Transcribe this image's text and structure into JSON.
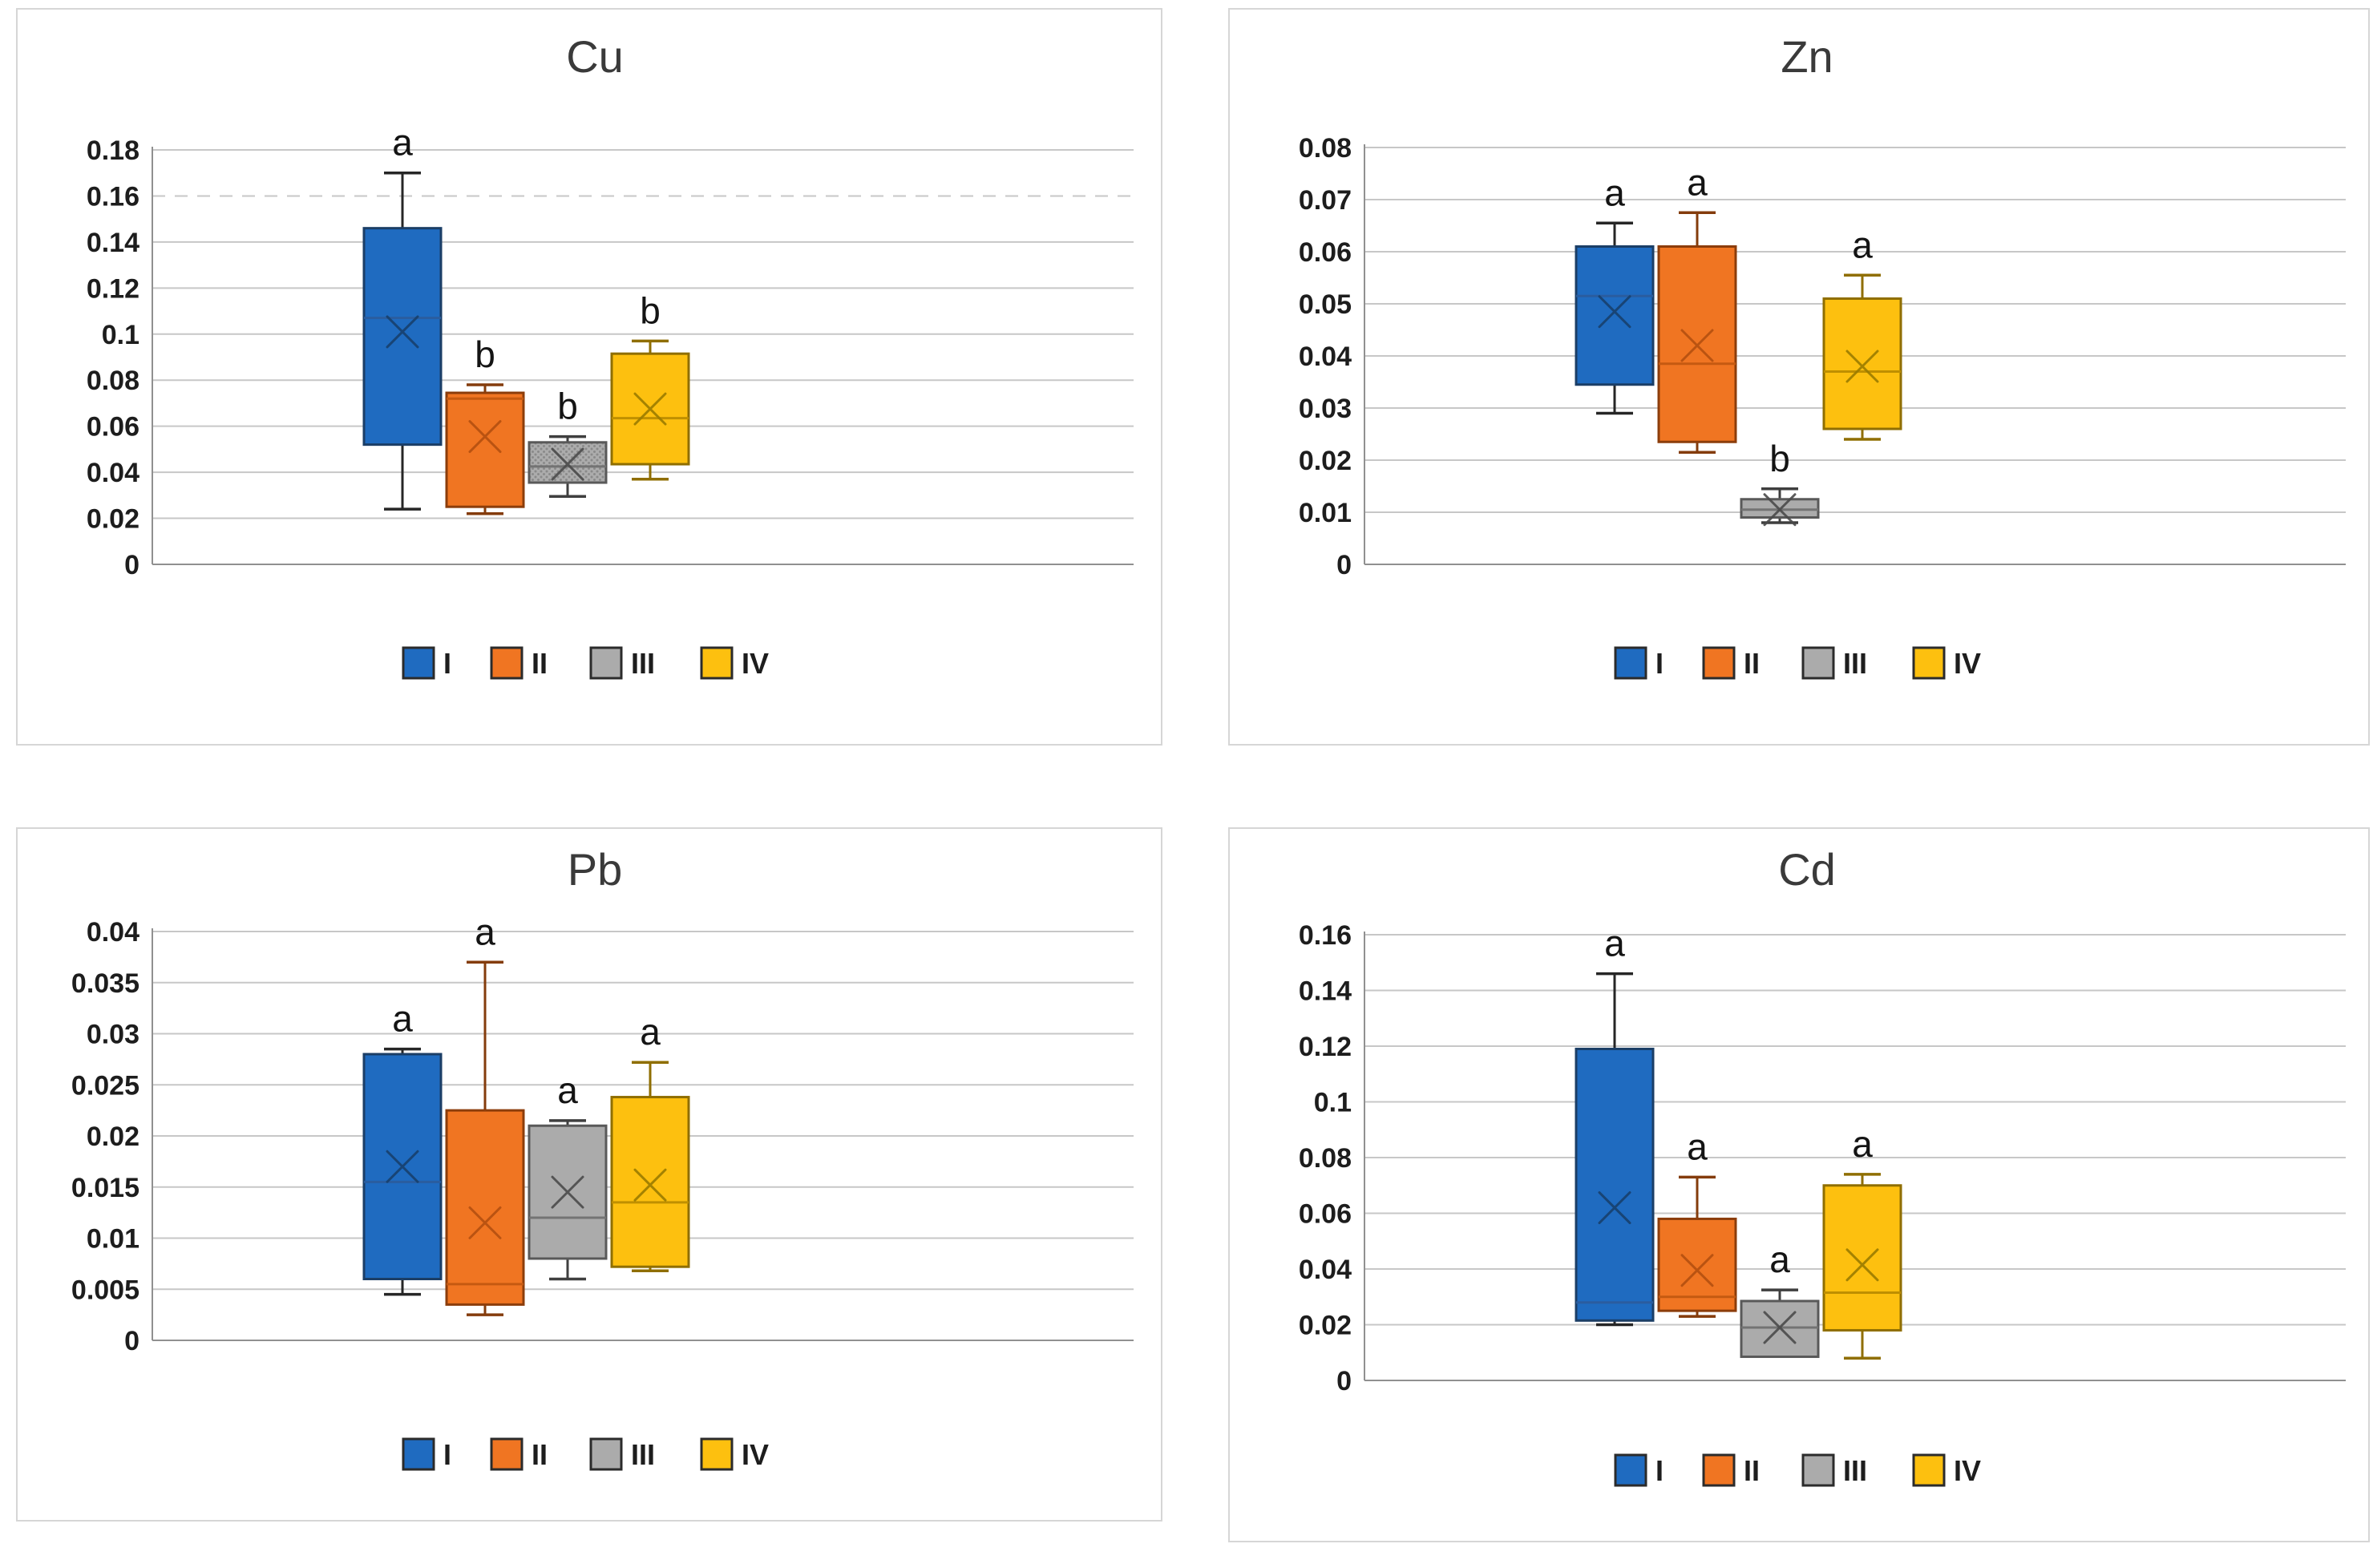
{
  "page": {
    "background": "#ffffff"
  },
  "series_styles": [
    {
      "name": "I",
      "fill": "#1F6BC0",
      "border": "#1B3E66",
      "median": "#2A5D9F",
      "whisker": "#262626",
      "accent": "#17406D"
    },
    {
      "name": "II",
      "fill": "#F07522",
      "border": "#8C3D0B",
      "median": "#C55A11",
      "whisker": "#843C0C",
      "accent": "#B4500F"
    },
    {
      "name": "III",
      "fill": "#ABABAB",
      "border": "#595959",
      "median": "#737373",
      "whisker": "#3F3F3F",
      "accent": "#4A4A4A"
    },
    {
      "name": "IV",
      "fill": "#FDC00F",
      "border": "#8F6E00",
      "median": "#BF8F00",
      "whisker": "#8F6E00",
      "accent": "#9A7B00"
    }
  ],
  "legend": {
    "labels": [
      "I",
      "II",
      "III",
      "IV"
    ]
  },
  "chart_data": [
    {
      "type": "box",
      "title": "Cu",
      "ylim": [
        0,
        0.18
      ],
      "ytick_step": 0.02,
      "yticks": [
        "0.18",
        "0.16",
        "0.14",
        "0.12",
        "0.1",
        "0.08",
        "0.06",
        "0.04",
        "0.02",
        "0"
      ],
      "grid": true,
      "dashed_gridline_value": 0.16,
      "legend_position": "bottom",
      "series": [
        {
          "name": "I",
          "letter": "a",
          "whisker_low": 0.024,
          "q1": 0.052,
          "median": 0.107,
          "mean": 0.101,
          "q3": 0.146,
          "whisker_high": 0.17
        },
        {
          "name": "II",
          "letter": "b",
          "whisker_low": 0.022,
          "q1": 0.025,
          "median": 0.072,
          "mean": 0.0555,
          "q3": 0.0745,
          "whisker_high": 0.078
        },
        {
          "name": "III",
          "letter": "b",
          "whisker_low": 0.0295,
          "q1": 0.0355,
          "median": 0.0425,
          "mean": 0.0435,
          "q3": 0.053,
          "whisker_high": 0.0555,
          "pattern": "dots"
        },
        {
          "name": "IV",
          "letter": "b",
          "whisker_low": 0.037,
          "q1": 0.0435,
          "median": 0.0635,
          "mean": 0.0675,
          "q3": 0.0915,
          "whisker_high": 0.097
        }
      ]
    },
    {
      "type": "box",
      "title": "Zn",
      "ylim": [
        0,
        0.08
      ],
      "ytick_step": 0.01,
      "yticks": [
        "0.08",
        "0.07",
        "0.06",
        "0.05",
        "0.04",
        "0.03",
        "0.02",
        "0.01",
        "0"
      ],
      "grid": true,
      "legend_position": "bottom",
      "series": [
        {
          "name": "I",
          "letter": "a",
          "whisker_low": 0.029,
          "q1": 0.0345,
          "median": 0.0515,
          "mean": 0.0485,
          "q3": 0.061,
          "whisker_high": 0.0655
        },
        {
          "name": "II",
          "letter": "a",
          "whisker_low": 0.0215,
          "q1": 0.0235,
          "median": 0.0385,
          "mean": 0.042,
          "q3": 0.061,
          "whisker_high": 0.0675
        },
        {
          "name": "III",
          "letter": "b",
          "whisker_low": 0.008,
          "q1": 0.009,
          "median": 0.0105,
          "mean": 0.0105,
          "q3": 0.0125,
          "whisker_high": 0.0145
        },
        {
          "name": "IV",
          "letter": "a",
          "whisker_low": 0.024,
          "q1": 0.026,
          "median": 0.037,
          "mean": 0.038,
          "q3": 0.051,
          "whisker_high": 0.0555
        }
      ]
    },
    {
      "type": "box",
      "title": "Pb",
      "ylim": [
        0,
        0.04
      ],
      "ytick_step": 0.005,
      "yticks": [
        "0.04",
        "0.035",
        "0.03",
        "0.025",
        "0.02",
        "0.015",
        "0.01",
        "0.005",
        "0"
      ],
      "grid": true,
      "legend_position": "bottom",
      "series": [
        {
          "name": "I",
          "letter": "a",
          "whisker_low": 0.0045,
          "q1": 0.006,
          "median": 0.0155,
          "mean": 0.017,
          "q3": 0.028,
          "whisker_high": 0.0285
        },
        {
          "name": "II",
          "letter": "a",
          "whisker_low": 0.0025,
          "q1": 0.0035,
          "median": 0.0055,
          "mean": 0.0115,
          "q3": 0.0225,
          "whisker_high": 0.037
        },
        {
          "name": "III",
          "letter": "a",
          "whisker_low": 0.006,
          "q1": 0.008,
          "median": 0.012,
          "mean": 0.0145,
          "q3": 0.021,
          "whisker_high": 0.0215
        },
        {
          "name": "IV",
          "letter": "a",
          "whisker_low": 0.0068,
          "q1": 0.0072,
          "median": 0.0135,
          "mean": 0.0152,
          "q3": 0.0238,
          "whisker_high": 0.0272
        }
      ]
    },
    {
      "type": "box",
      "title": "Cd",
      "ylim": [
        0,
        0.16
      ],
      "ytick_step": 0.02,
      "yticks": [
        "0.16",
        "0.14",
        "0.12",
        "0.1",
        "0.08",
        "0.06",
        "0.04",
        "0.02",
        "0"
      ],
      "grid": true,
      "legend_position": "bottom",
      "series": [
        {
          "name": "I",
          "letter": "a",
          "whisker_low": 0.02,
          "q1": 0.0215,
          "median": 0.028,
          "mean": 0.062,
          "q3": 0.119,
          "whisker_high": 0.146
        },
        {
          "name": "II",
          "letter": "a",
          "whisker_low": 0.023,
          "q1": 0.025,
          "median": 0.03,
          "mean": 0.0395,
          "q3": 0.058,
          "whisker_high": 0.073
        },
        {
          "name": "III",
          "letter": "a",
          "whisker_low": 0.0085,
          "q1": 0.0085,
          "median": 0.019,
          "mean": 0.019,
          "q3": 0.0285,
          "whisker_high": 0.0325
        },
        {
          "name": "IV",
          "letter": "a",
          "whisker_low": 0.008,
          "q1": 0.018,
          "median": 0.0315,
          "mean": 0.0415,
          "q3": 0.07,
          "whisker_high": 0.074
        }
      ]
    }
  ]
}
